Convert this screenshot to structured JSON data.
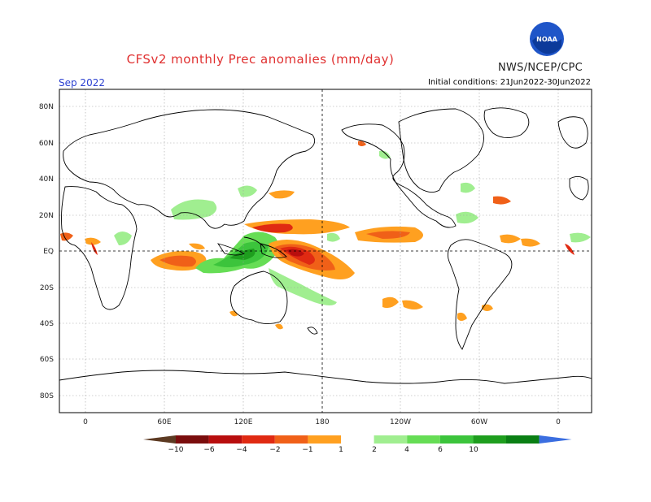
{
  "header": {
    "title": "CFSv2 monthly Prec anomalies (mm/day)",
    "org": "NWS/NCEP/CPC",
    "logo_text": "NOAA",
    "month": "Sep 2022",
    "initial_conditions": "Initial conditions: 21Jun2022-30Jun2022"
  },
  "lat_labels": [
    "80N",
    "60N",
    "40N",
    "20N",
    "EQ",
    "20S",
    "40S",
    "60S",
    "80S"
  ],
  "lon_labels": [
    "0",
    "60E",
    "120E",
    "180",
    "120W",
    "60W",
    "0"
  ],
  "colorbar": {
    "ticks": [
      "−10",
      "−6",
      "−4",
      "−2",
      "−1",
      "1",
      "2",
      "4",
      "6",
      "10"
    ],
    "colors": [
      "#5c3a22",
      "#7a0d0d",
      "#b80e0e",
      "#e02a12",
      "#f06018",
      "#ffa020",
      "#ffffff",
      "#a0ee90",
      "#66dd55",
      "#3cc43c",
      "#1e9e1e",
      "#0a7f14",
      "#3b6ee0"
    ]
  }
}
